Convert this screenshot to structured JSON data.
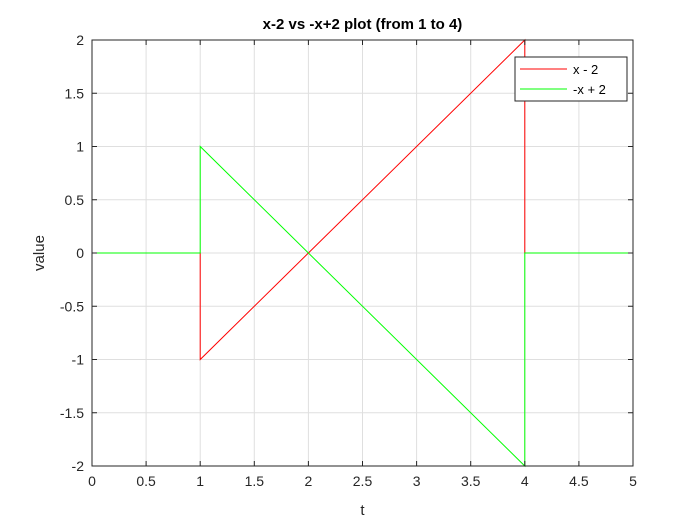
{
  "window": {
    "background": "#ffffff"
  },
  "chart_data": {
    "type": "line",
    "title": "x-2 vs -x+2 plot (from 1 to 4)",
    "xlabel": "t",
    "ylabel": "value",
    "xlim": [
      0,
      5
    ],
    "ylim": [
      -2,
      2
    ],
    "xticks": [
      0,
      0.5,
      1,
      1.5,
      2,
      2.5,
      3,
      3.5,
      4,
      4.5,
      5
    ],
    "xtick_labels": [
      "0",
      "0.5",
      "1",
      "1.5",
      "2",
      "2.5",
      "3",
      "3.5",
      "4",
      "4.5",
      "5"
    ],
    "yticks": [
      -2,
      -1.5,
      -1,
      -0.5,
      0,
      0.5,
      1,
      1.5,
      2
    ],
    "ytick_labels": [
      "-2",
      "-1.5",
      "-1",
      "-0.5",
      "0",
      "0.5",
      "1",
      "1.5",
      "2"
    ],
    "grid": true,
    "legend_position": "top-right",
    "series": [
      {
        "name": "x - 2",
        "color": "#ff0000",
        "x": [
          0,
          1,
          1,
          4,
          4,
          5
        ],
        "y": [
          0,
          0,
          -1,
          2,
          0,
          0
        ]
      },
      {
        "name": "-x + 2",
        "color": "#00ff00",
        "x": [
          0,
          1,
          1,
          4,
          4,
          5
        ],
        "y": [
          0,
          0,
          1,
          -2,
          0,
          0
        ]
      }
    ]
  }
}
